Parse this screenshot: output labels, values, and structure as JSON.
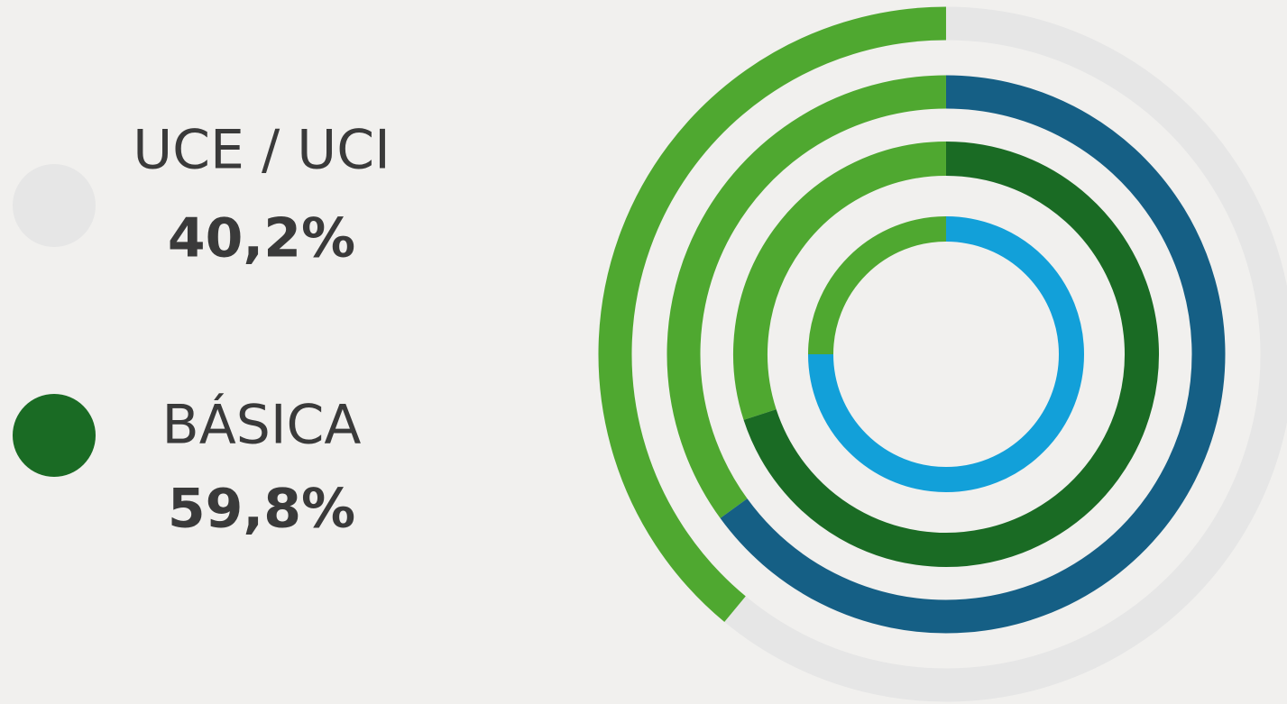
{
  "chart_data": {
    "type": "radial",
    "max": 100,
    "legend": [
      {
        "label": "UCE / UCI",
        "value": 40.2,
        "value_label": "40,2%",
        "color": "#e6e6e6"
      },
      {
        "label": "BÁSICA",
        "value": 59.8,
        "value_label": "59,8%",
        "color": "#1a6b24"
      }
    ],
    "remainder_color": "#4fa830",
    "rings": [
      {
        "value": 61,
        "color": "#e6e6e6"
      },
      {
        "value": 65,
        "color": "#155f85"
      },
      {
        "value": 70,
        "color": "#1a6b24"
      },
      {
        "value": 75,
        "color": "#12a0d9"
      }
    ]
  }
}
